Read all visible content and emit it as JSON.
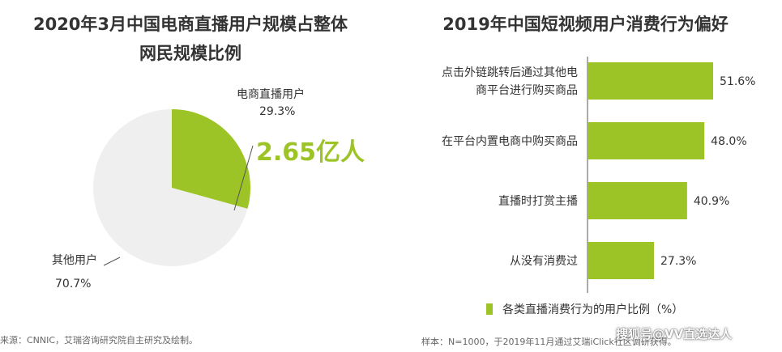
{
  "left": {
    "title_line1": "2020年3月中国电商直播用户规模占整体",
    "title_line2": "网民规模比例",
    "highlight": "2.65亿人",
    "source": "来源：CNNIC，艾瑞咨询研究院自主研究及绘制。"
  },
  "right": {
    "title": "2019年中国短视频用户消费行为偏好",
    "legend": "各类直播消费行为的用户比例（%）",
    "sample": "样本：N=1000，于2019年11月通过艾瑞iClick社区调研获得。"
  },
  "watermark": "搜狐号@VV直选达人",
  "colors": {
    "accent": "#9dc426",
    "other": "#efefef"
  },
  "chart_data": [
    {
      "type": "pie",
      "title": "2020年3月中国电商直播用户规模占整体网民规模比例",
      "slices": [
        {
          "name": "电商直播用户",
          "value": 29.3,
          "label": "29.3%",
          "color": "#9dc426"
        },
        {
          "name": "其他用户",
          "value": 70.7,
          "label": "70.7%",
          "color": "#efefef"
        }
      ]
    },
    {
      "type": "bar",
      "orientation": "horizontal",
      "title": "2019年中国短视频用户消费行为偏好",
      "categories": [
        [
          "点击外链跳转后通过其他电",
          "商平台进行购买商品"
        ],
        [
          "在平台内置电商中购买商品"
        ],
        [
          "直播时打赏主播"
        ],
        [
          "从没有消费过"
        ]
      ],
      "values": [
        51.6,
        48.0,
        40.9,
        27.3
      ],
      "value_labels": [
        "51.6%",
        "48.0%",
        "40.9%",
        "27.3%"
      ],
      "series": [
        {
          "name": "各类直播消费行为的用户比例（%）",
          "values": [
            51.6,
            48.0,
            40.9,
            27.3
          ]
        }
      ],
      "grid": false,
      "legend_position": "bottom"
    }
  ]
}
